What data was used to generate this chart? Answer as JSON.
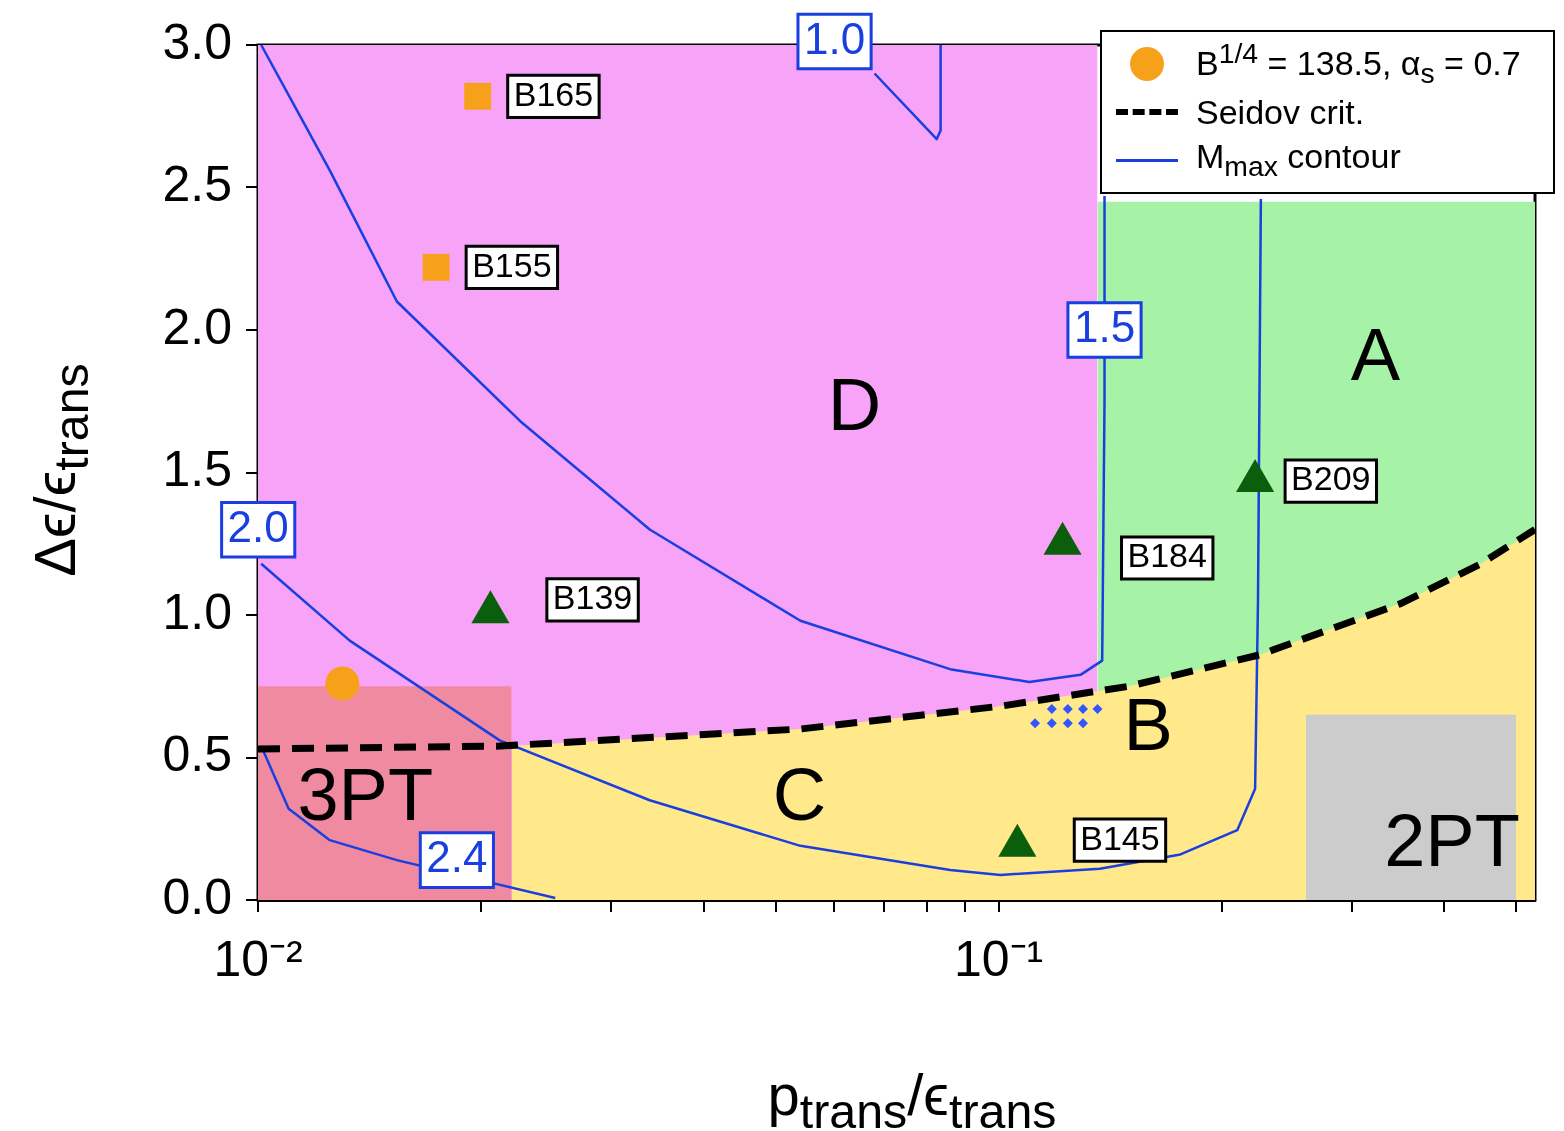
{
  "chart_data": {
    "type": "scatter",
    "xlabel": "p$_{trans}$/ϵ$_{trans}$",
    "ylabel": "Δϵ/ϵ$_{trans}$",
    "log": "x",
    "grid": false,
    "legend": "top right",
    "xlim": [
      0.01,
      0.53
    ],
    "ylim": [
      0,
      3.0
    ],
    "xticks": [
      {
        "value": 0.01,
        "label": "10⁻²"
      },
      {
        "value": 0.02,
        "label": null
      },
      {
        "value": 0.03,
        "label": null
      },
      {
        "value": 0.04,
        "label": null
      },
      {
        "value": 0.05,
        "label": null
      },
      {
        "value": 0.06,
        "label": null
      },
      {
        "value": 0.07,
        "label": null
      },
      {
        "value": 0.08,
        "label": null
      },
      {
        "value": 0.09,
        "label": null
      },
      {
        "value": 0.1,
        "label": "10⁻¹"
      },
      {
        "value": 0.2,
        "label": null
      },
      {
        "value": 0.3,
        "label": null
      },
      {
        "value": 0.4,
        "label": null
      },
      {
        "value": 0.5,
        "label": null
      }
    ],
    "yticks": [
      {
        "value": 0,
        "label": "0.0"
      },
      {
        "value": 0.5,
        "label": "0.5"
      },
      {
        "value": 1,
        "label": "1.0"
      },
      {
        "value": 1.5,
        "label": "1.5"
      },
      {
        "value": 2,
        "label": "2.0"
      },
      {
        "value": 2.5,
        "label": "2.5"
      },
      {
        "value": 3,
        "label": "3.0"
      }
    ],
    "series": [
      {
        "type": "area",
        "color": "#f7a3f7",
        "x": [
          0.01,
          0.136
        ],
        "values": [
          3,
          3
        ]
      },
      {
        "type": "area",
        "color": "#a6f2a6",
        "x": [
          0.136,
          0.53
        ],
        "values": [
          2.45,
          2.45
        ]
      },
      {
        "type": "area",
        "color": "#ffe98a",
        "x": [
          0.022,
          0.054,
          0.1006,
          0.15,
          0.225,
          0.349,
          0.448,
          0.53
        ],
        "values": [
          0.54,
          0.6,
          0.68,
          0.75,
          0.86,
          1.04,
          1.18,
          1.3
        ]
      },
      {
        "type": "area",
        "color": "#f08aa0",
        "x": [
          0.01,
          0.022
        ],
        "values": [
          0.75,
          0.75
        ]
      },
      {
        "type": "area",
        "color": "#cccccc",
        "x": [
          0.26,
          0.5
        ],
        "values": [
          0.65,
          0.65
        ]
      },
      {
        "type": "scatter",
        "color": "#3355ff",
        "marker": "diamond",
        "x": [
          0.112,
          0.118,
          0.124,
          0.13,
          0.118,
          0.124,
          0.13,
          0.136
        ],
        "values": [
          0.62,
          0.62,
          0.62,
          0.62,
          0.67,
          0.67,
          0.67,
          0.67
        ]
      },
      {
        "type": "scatter",
        "name": "B$^{1/4}$ = 138.5, α$_{s}$ = 0.7",
        "color": "#f7a11a",
        "marker": "circle",
        "x": [
          0.013
        ],
        "values": [
          0.76
        ]
      },
      {
        "type": "scatter",
        "color": "#f7a11a",
        "marker": "square",
        "x": [
          0.0198,
          0.0174
        ],
        "values": [
          2.82,
          2.22
        ]
      },
      {
        "type": "scatter",
        "color": "#0b5e0b",
        "marker": "triangle",
        "x": [
          0.0206,
          0.122,
          0.222,
          0.106
        ],
        "values": [
          1.01,
          1.25,
          1.47,
          0.19
        ]
      },
      {
        "type": "line",
        "name": "Seidov crit.",
        "color": "#000000",
        "line_style": "dashed",
        "marker": "none",
        "x": [
          0.01,
          0.0212,
          0.054,
          0.1006,
          0.15,
          0.225,
          0.349,
          0.448,
          0.53
        ],
        "values": [
          0.53,
          0.54,
          0.6,
          0.68,
          0.75,
          0.86,
          1.04,
          1.18,
          1.3
        ]
      },
      {
        "type": "line",
        "name": "M$_{max}$ contour",
        "color": "#1a3fe0",
        "line_style": "solid",
        "marker": "none",
        "x": [
          0.0101,
          0.0125,
          0.0154,
          0.0226,
          0.0338,
          0.054,
          0.086,
          0.11,
          0.129,
          0.138,
          0.139,
          0.139
        ],
        "values": [
          3.0,
          2.56,
          2.1,
          1.68,
          1.3,
          0.98,
          0.81,
          0.765,
          0.79,
          0.84,
          1.75,
          2.47
        ]
      },
      {
        "type": "line",
        "color": "#1a3fe0",
        "line_style": "solid",
        "marker": "none",
        "x": [
          0.068,
          0.0825,
          0.0835,
          0.0835
        ],
        "values": [
          2.9,
          2.67,
          2.7,
          3.0
        ]
      },
      {
        "type": "line",
        "color": "#1a3fe0",
        "line_style": "solid",
        "marker": "none",
        "x": [
          0.0101,
          0.0133,
          0.0212,
          0.0338,
          0.054,
          0.086,
          0.1006,
          0.137,
          0.176,
          0.21,
          0.222,
          0.224,
          0.226
        ],
        "values": [
          1.18,
          0.91,
          0.56,
          0.35,
          0.19,
          0.105,
          0.088,
          0.11,
          0.16,
          0.245,
          0.39,
          1.05,
          2.46
        ]
      },
      {
        "type": "line",
        "color": "#1a3fe0",
        "line_style": "solid",
        "marker": "none",
        "x": [
          0.0101,
          0.011,
          0.0125,
          0.0154,
          0.0252
        ],
        "values": [
          0.54,
          0.32,
          0.21,
          0.14,
          0.007
        ]
      }
    ],
    "annotations": [
      {
        "text": "B165",
        "x": 0.0198,
        "y": 2.82
      },
      {
        "text": "B155",
        "x": 0.0174,
        "y": 2.22
      },
      "B139",
      "B184",
      {
        "text": "B209",
        "x": 0.222,
        "y": 1.47
      },
      "B145",
      {
        "text": "1.0",
        "x": 0.068,
        "y": 2.9
      },
      {
        "text": "1.5",
        "x": 0.139,
        "y": 2.0
      },
      {
        "text": "2.0",
        "x": 0.0101,
        "y": 1.18
      },
      {
        "text": "2.4",
        "x": 0.0154,
        "y": 0.14
      },
      "D",
      "A",
      "B",
      "C",
      "3PT",
      "2PT"
    ]
  }
}
